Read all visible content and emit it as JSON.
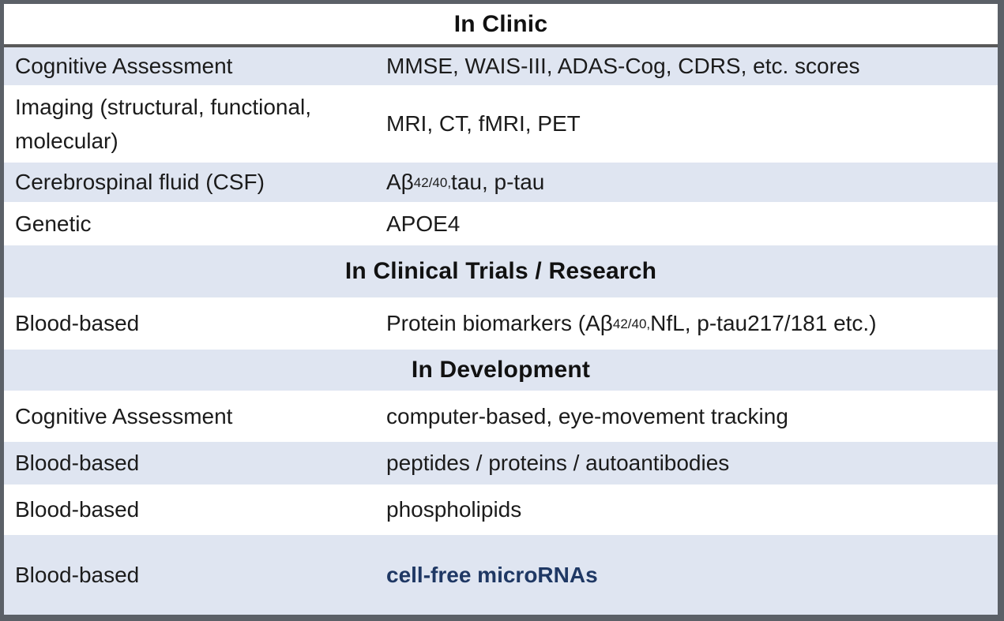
{
  "colors": {
    "band_blue": "#dfe5f1",
    "frame_gray": "#5b6067",
    "divider_gray": "#595959",
    "highlight_navy": "#1f3864",
    "body_text": "#1b1b1b"
  },
  "table": {
    "rows": [
      {
        "kind": "section",
        "label": "In Clinic"
      },
      {
        "kind": "data",
        "left": "Cognitive Assessment",
        "right": "MMSE, WAIS-III, ADAS-Cog, CDRS, etc. scores"
      },
      {
        "kind": "data",
        "left": "Imaging (structural, functional, molecular)",
        "right": "MRI, CT, fMRI, PET"
      },
      {
        "kind": "data",
        "left": "Cerebrospinal fluid (CSF)",
        "right_pre": "Aβ",
        "right_sub": "42/40,",
        "right_post": " tau, p-tau"
      },
      {
        "kind": "data",
        "left": "Genetic",
        "right": "APOE4"
      },
      {
        "kind": "section",
        "label": "In Clinical Trials / Research"
      },
      {
        "kind": "data",
        "left": "Blood-based",
        "right_pre": "Protein biomarkers (Aβ",
        "right_sub": "42/40,",
        "right_post": " NfL, p-tau217/181 etc.)"
      },
      {
        "kind": "section",
        "label": "In Development"
      },
      {
        "kind": "data",
        "left": "Cognitive Assessment",
        "right": "computer-based, eye-movement tracking"
      },
      {
        "kind": "data",
        "left": "Blood-based",
        "right": "peptides / proteins / autoantibodies"
      },
      {
        "kind": "data",
        "left": "Blood-based",
        "right": "phospholipids"
      },
      {
        "kind": "data",
        "left": "Blood-based",
        "right": "cell-free microRNAs",
        "highlight": true
      }
    ]
  }
}
